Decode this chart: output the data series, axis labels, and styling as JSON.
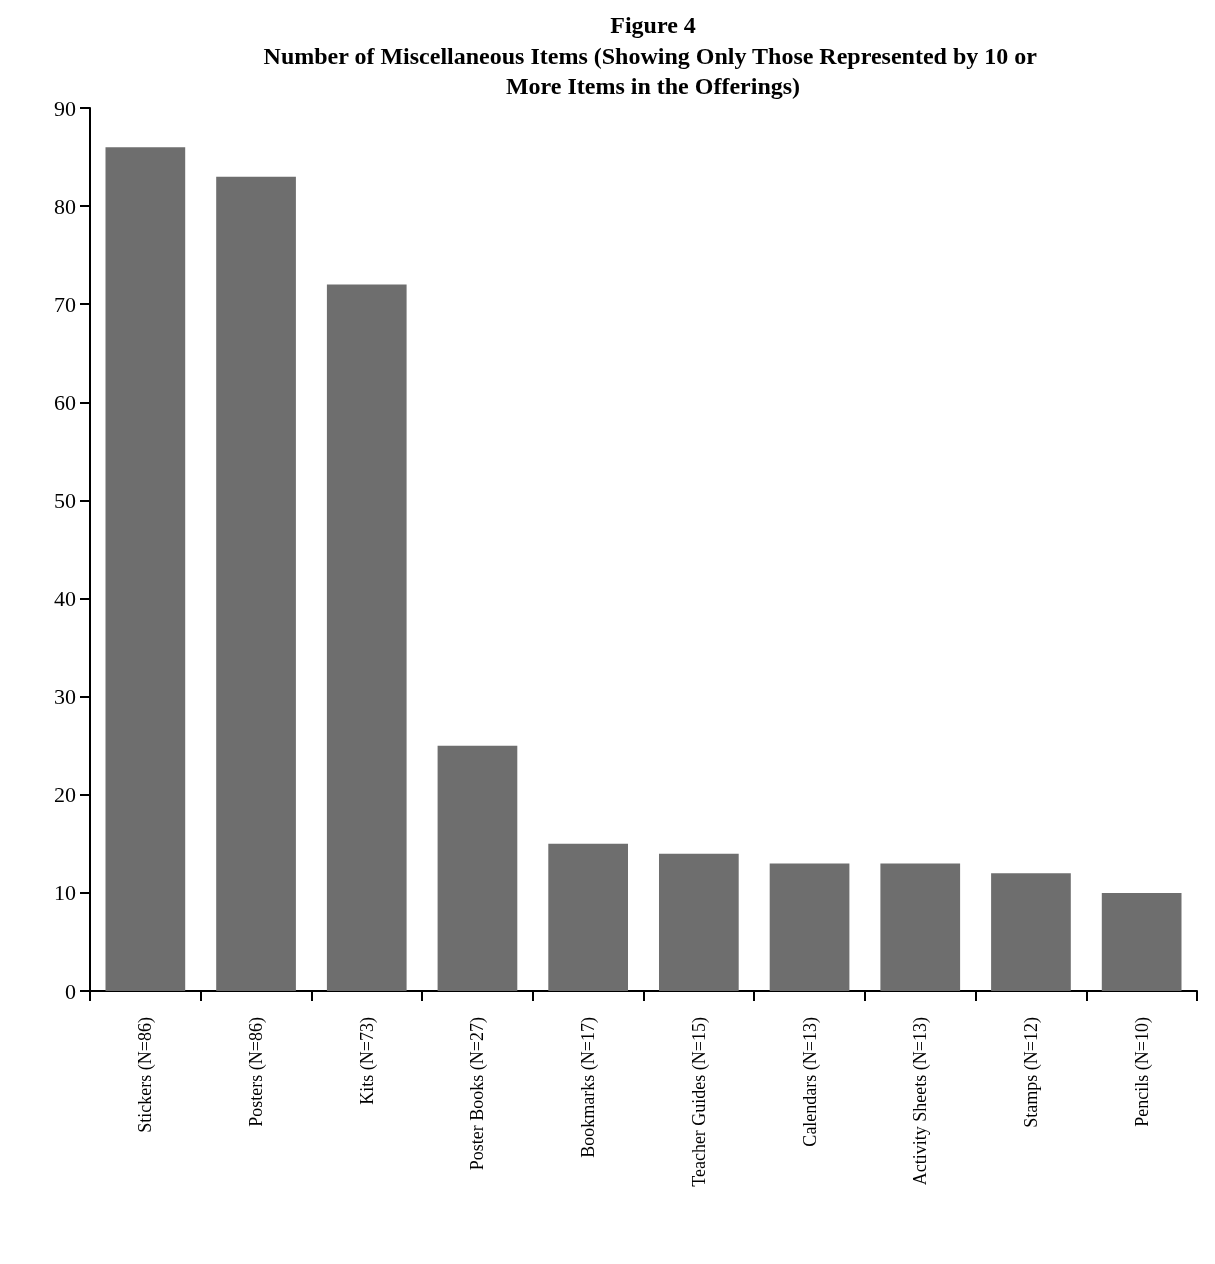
{
  "chart_data": {
    "type": "bar",
    "title": "Figure 4",
    "subtitle": "Number of Miscellaneous Items (Showing Only Those Represented by 10 or More Items in the Offerings)",
    "categories": [
      "Stickers (N=86)",
      "Posters (N=86)",
      "Kits (N=73)",
      "Poster Books (N=27)",
      "Bookmarks (N=17)",
      "Teacher Guides (N=15)",
      "Calendars (N=13)",
      "Activity Sheets (N=13)",
      "Stamps (N=12)",
      "Pencils (N=10)"
    ],
    "values": [
      86,
      83,
      72,
      25,
      15,
      14,
      13,
      13,
      12,
      10
    ],
    "color": "#6e6e6e",
    "ylim": [
      0,
      90
    ],
    "yticks": [
      0,
      10,
      20,
      30,
      40,
      50,
      60,
      70,
      80,
      90
    ]
  }
}
